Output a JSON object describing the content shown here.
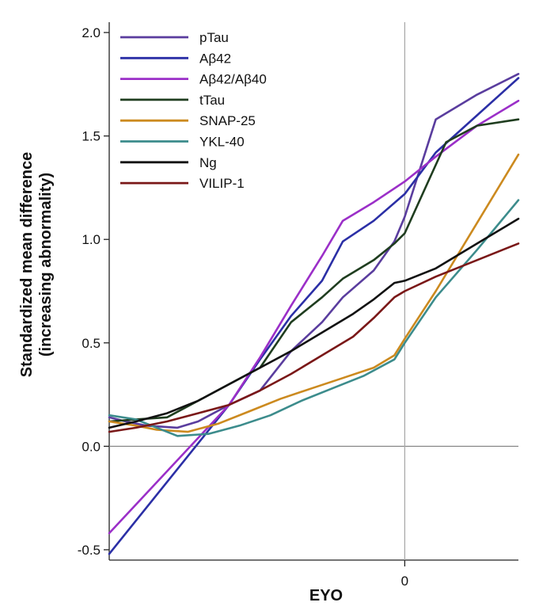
{
  "chart_data": {
    "type": "line",
    "xlabel": "EYO",
    "ylabel": "Standardized mean difference",
    "ylabel_sub": "(increasing abnormality)",
    "x_ticks": [
      {
        "value": 0,
        "label": "0"
      }
    ],
    "y_ticks": [
      {
        "value": -0.5,
        "label": "-0.5"
      },
      {
        "value": 0.0,
        "label": "0.0"
      },
      {
        "value": 0.5,
        "label": "0.5"
      },
      {
        "value": 1.0,
        "label": "1.0"
      },
      {
        "value": 1.5,
        "label": "1.5"
      },
      {
        "value": 2.0,
        "label": "2.0"
      }
    ],
    "xlim": [
      -28.6,
      11
    ],
    "ylim": [
      -0.55,
      2.05
    ],
    "grid": false,
    "reference_line_x": 0,
    "legend_position": "top-left",
    "series": [
      {
        "name": "pTau",
        "color": "#5a3d9e",
        "x": [
          -28.6,
          -27,
          -25,
          -22,
          -20,
          -17,
          -14,
          -11,
          -8,
          -6,
          -3,
          -1,
          0,
          3,
          7,
          11
        ],
        "y": [
          0.14,
          0.12,
          0.1,
          0.09,
          0.12,
          0.2,
          0.27,
          0.46,
          0.6,
          0.72,
          0.85,
          0.99,
          1.11,
          1.58,
          1.7,
          1.8
        ]
      },
      {
        "name": "Aβ42",
        "color": "#2b2fa6",
        "x": [
          -28.6,
          -17,
          -14,
          -11,
          -8,
          -6,
          -3,
          0,
          3,
          7,
          11
        ],
        "y": [
          -0.52,
          0.2,
          0.42,
          0.63,
          0.8,
          0.99,
          1.09,
          1.22,
          1.42,
          1.6,
          1.78
        ]
      },
      {
        "name": "Aβ42/Aβ40",
        "color": "#9b2fc8",
        "x": [
          -28.6,
          -17,
          -14,
          -11,
          -8,
          -6,
          -3,
          0,
          3,
          7,
          11
        ],
        "y": [
          -0.42,
          0.2,
          0.43,
          0.68,
          0.92,
          1.09,
          1.18,
          1.28,
          1.4,
          1.55,
          1.67
        ]
      },
      {
        "name": "tTau",
        "color": "#1f3d1f",
        "x": [
          -28.6,
          -26,
          -23,
          -20,
          -17,
          -14,
          -11,
          -8,
          -6,
          -3,
          -1,
          0,
          2,
          4,
          7,
          11
        ],
        "y": [
          0.12,
          0.13,
          0.14,
          0.22,
          0.3,
          0.38,
          0.6,
          0.72,
          0.81,
          0.9,
          0.98,
          1.03,
          1.25,
          1.47,
          1.55,
          1.58
        ]
      },
      {
        "name": "SNAP-25",
        "color": "#cc8a1f",
        "x": [
          -28.6,
          -26,
          -24,
          -21,
          -18,
          -15,
          -12,
          -9,
          -6,
          -3,
          -1,
          0,
          3,
          7,
          11
        ],
        "y": [
          0.12,
          0.1,
          0.08,
          0.07,
          0.11,
          0.17,
          0.23,
          0.28,
          0.33,
          0.38,
          0.44,
          0.52,
          0.75,
          1.08,
          1.41
        ]
      },
      {
        "name": "YKL-40",
        "color": "#3c8c8c",
        "x": [
          -28.6,
          -26,
          -24,
          -22,
          -19,
          -16,
          -13,
          -10,
          -7,
          -4,
          -1,
          0,
          3,
          7,
          11
        ],
        "y": [
          0.15,
          0.13,
          0.09,
          0.05,
          0.06,
          0.1,
          0.15,
          0.22,
          0.28,
          0.34,
          0.42,
          0.5,
          0.72,
          0.95,
          1.19
        ]
      },
      {
        "name": "Ng",
        "color": "#111111",
        "x": [
          -28.6,
          -26,
          -23,
          -20,
          -17,
          -14,
          -11,
          -8,
          -5,
          -3,
          -1,
          0,
          3,
          7,
          11
        ],
        "y": [
          0.09,
          0.12,
          0.16,
          0.22,
          0.3,
          0.38,
          0.46,
          0.55,
          0.64,
          0.71,
          0.79,
          0.8,
          0.86,
          0.98,
          1.1
        ]
      },
      {
        "name": "VILIP-1",
        "color": "#7a1818",
        "x": [
          -28.6,
          -26,
          -23,
          -20,
          -17,
          -14,
          -11,
          -8,
          -5,
          -3,
          -1,
          0,
          3,
          7,
          11
        ],
        "y": [
          0.07,
          0.09,
          0.12,
          0.16,
          0.2,
          0.27,
          0.35,
          0.44,
          0.53,
          0.62,
          0.72,
          0.75,
          0.82,
          0.9,
          0.98
        ]
      }
    ]
  }
}
